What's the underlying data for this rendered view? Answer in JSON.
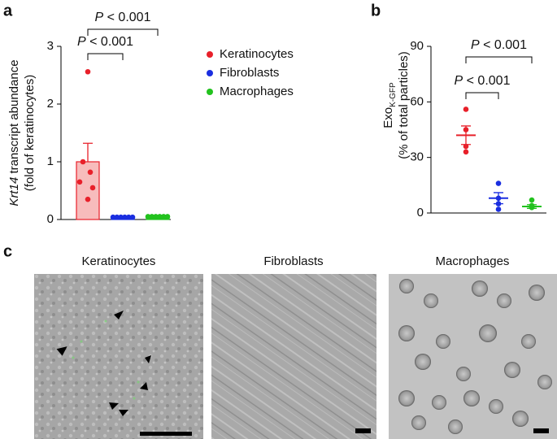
{
  "chart_data": [
    {
      "panel_label": "a",
      "type": "bar",
      "ylabel": {
        "italic": "Krt14",
        "text": " transcript abundance",
        "line2": "(fold of keratinocytes)"
      },
      "ylim": [
        0,
        3
      ],
      "yticks": [
        0,
        1,
        2,
        3
      ],
      "series": [
        {
          "name": "Keratinocytes",
          "color": "#e8202a",
          "fill": "#f7bcbc",
          "value": 1.0,
          "error": 0.32,
          "points": [
            2.56,
            1.0,
            0.82,
            0.65,
            0.55,
            0.35
          ]
        },
        {
          "name": "Fibroblasts",
          "color": "#1a2ee0",
          "fill": "#1a2ee0",
          "value": 0.04,
          "error": 0.01,
          "points": [
            0.04,
            0.04,
            0.04,
            0.04,
            0.04,
            0.04
          ]
        },
        {
          "name": "Macrophages",
          "color": "#22c21e",
          "fill": "#22c21e",
          "value": 0.05,
          "error": 0.01,
          "points": [
            0.05,
            0.05,
            0.05,
            0.05,
            0.05,
            0.05
          ]
        }
      ],
      "annotations": [
        {
          "italic": "P",
          "text": " < 0.001"
        },
        {
          "italic": "P",
          "text": " < 0.001"
        }
      ]
    },
    {
      "panel_label": "b",
      "type": "dot",
      "ylabel": {
        "text": "Exo",
        "sub": "K-GFP",
        "line2": "(% of total particles)"
      },
      "ylim": [
        0,
        90
      ],
      "yticks": [
        0,
        30,
        60,
        90
      ],
      "series": [
        {
          "name": "Keratinocytes",
          "color": "#e8202a",
          "value": 42,
          "error": 5,
          "points": [
            56,
            45,
            36,
            33
          ]
        },
        {
          "name": "Fibroblasts",
          "color": "#1a2ee0",
          "value": 8,
          "error": 3,
          "points": [
            16,
            8,
            5,
            2
          ]
        },
        {
          "name": "Macrophages",
          "color": "#22c21e",
          "value": 3.5,
          "error": 1,
          "points": [
            7,
            4,
            3,
            3
          ]
        }
      ],
      "annotations": [
        {
          "italic": "P",
          "text": " < 0.001"
        },
        {
          "italic": "P",
          "text": " < 0.001"
        }
      ]
    }
  ],
  "image_panel": {
    "panel_label": "c",
    "titles": [
      "Keratinocytes",
      "Fibroblasts",
      "Macrophages"
    ]
  }
}
